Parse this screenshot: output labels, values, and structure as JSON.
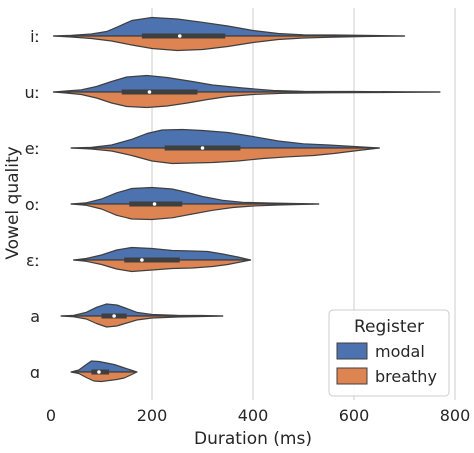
{
  "chart_data": {
    "type": "violin",
    "orientation": "horizontal",
    "split": true,
    "xlabel": "Duration (ms)",
    "ylabel": "Vowel quality",
    "xlim": [
      0,
      800
    ],
    "xticks": [
      0,
      200,
      400,
      600,
      800
    ],
    "grid": "vertical",
    "categories": [
      "iː",
      "uː",
      "eː",
      "oː",
      "ɛː",
      "a",
      "ɑ"
    ],
    "series": [
      {
        "name": "modal",
        "color": "#4c72b0"
      },
      {
        "name": "breathy",
        "color": "#dd8452"
      }
    ],
    "violins": [
      {
        "category": "iː",
        "range": [
          5,
          700
        ],
        "median": 255,
        "q1": 180,
        "q3": 345,
        "modal": [
          [
            5,
            0
          ],
          [
            40,
            0.03
          ],
          [
            80,
            0.08
          ],
          [
            110,
            0.18
          ],
          [
            130,
            0.35
          ],
          [
            160,
            0.62
          ],
          [
            200,
            0.74
          ],
          [
            250,
            0.68
          ],
          [
            300,
            0.55
          ],
          [
            350,
            0.4
          ],
          [
            400,
            0.22
          ],
          [
            450,
            0.1
          ],
          [
            500,
            0.05
          ],
          [
            560,
            0.04
          ],
          [
            620,
            0.03
          ],
          [
            700,
            0
          ]
        ],
        "breathy": [
          [
            5,
            0
          ],
          [
            40,
            0.04
          ],
          [
            80,
            0.1
          ],
          [
            120,
            0.2
          ],
          [
            160,
            0.36
          ],
          [
            200,
            0.5
          ],
          [
            250,
            0.58
          ],
          [
            300,
            0.54
          ],
          [
            350,
            0.42
          ],
          [
            400,
            0.26
          ],
          [
            450,
            0.14
          ],
          [
            500,
            0.08
          ],
          [
            550,
            0.05
          ],
          [
            620,
            0.02
          ],
          [
            700,
            0
          ]
        ]
      },
      {
        "category": "uː",
        "range": [
          5,
          770
        ],
        "median": 195,
        "q1": 140,
        "q3": 290,
        "modal": [
          [
            5,
            0
          ],
          [
            30,
            0.04
          ],
          [
            60,
            0.09
          ],
          [
            90,
            0.22
          ],
          [
            120,
            0.42
          ],
          [
            150,
            0.6
          ],
          [
            190,
            0.66
          ],
          [
            230,
            0.58
          ],
          [
            280,
            0.42
          ],
          [
            320,
            0.28
          ],
          [
            380,
            0.16
          ],
          [
            440,
            0.06
          ],
          [
            500,
            0.03
          ],
          [
            600,
            0.02
          ],
          [
            700,
            0.01
          ],
          [
            770,
            0
          ]
        ],
        "breathy": [
          [
            5,
            0
          ],
          [
            30,
            0.04
          ],
          [
            60,
            0.1
          ],
          [
            90,
            0.24
          ],
          [
            120,
            0.44
          ],
          [
            150,
            0.58
          ],
          [
            190,
            0.62
          ],
          [
            230,
            0.56
          ],
          [
            270,
            0.44
          ],
          [
            310,
            0.3
          ],
          [
            350,
            0.18
          ],
          [
            400,
            0.1
          ],
          [
            460,
            0.05
          ],
          [
            550,
            0.03
          ],
          [
            650,
            0.02
          ],
          [
            770,
            0
          ]
        ]
      },
      {
        "category": "eː",
        "range": [
          40,
          650
        ],
        "median": 300,
        "q1": 225,
        "q3": 375,
        "modal": [
          [
            40,
            0
          ],
          [
            80,
            0.03
          ],
          [
            120,
            0.12
          ],
          [
            160,
            0.35
          ],
          [
            190,
            0.58
          ],
          [
            220,
            0.72
          ],
          [
            260,
            0.74
          ],
          [
            300,
            0.7
          ],
          [
            350,
            0.62
          ],
          [
            400,
            0.46
          ],
          [
            450,
            0.28
          ],
          [
            500,
            0.17
          ],
          [
            550,
            0.12
          ],
          [
            600,
            0.06
          ],
          [
            650,
            0
          ]
        ],
        "breathy": [
          [
            40,
            0
          ],
          [
            80,
            0.04
          ],
          [
            120,
            0.12
          ],
          [
            160,
            0.3
          ],
          [
            200,
            0.52
          ],
          [
            240,
            0.62
          ],
          [
            280,
            0.6
          ],
          [
            320,
            0.58
          ],
          [
            370,
            0.52
          ],
          [
            420,
            0.42
          ],
          [
            470,
            0.35
          ],
          [
            520,
            0.3
          ],
          [
            560,
            0.22
          ],
          [
            600,
            0.12
          ],
          [
            650,
            0
          ]
        ]
      },
      {
        "category": "oː",
        "range": [
          40,
          530
        ],
        "median": 205,
        "q1": 155,
        "q3": 260,
        "modal": [
          [
            40,
            0
          ],
          [
            70,
            0.05
          ],
          [
            100,
            0.2
          ],
          [
            130,
            0.45
          ],
          [
            160,
            0.62
          ],
          [
            200,
            0.66
          ],
          [
            240,
            0.6
          ],
          [
            270,
            0.46
          ],
          [
            300,
            0.3
          ],
          [
            340,
            0.15
          ],
          [
            380,
            0.07
          ],
          [
            430,
            0.04
          ],
          [
            480,
            0.02
          ],
          [
            530,
            0
          ]
        ],
        "breathy": [
          [
            40,
            0
          ],
          [
            70,
            0.05
          ],
          [
            100,
            0.2
          ],
          [
            130,
            0.45
          ],
          [
            160,
            0.6
          ],
          [
            200,
            0.62
          ],
          [
            240,
            0.55
          ],
          [
            280,
            0.4
          ],
          [
            320,
            0.25
          ],
          [
            360,
            0.14
          ],
          [
            400,
            0.08
          ],
          [
            450,
            0.04
          ],
          [
            490,
            0.02
          ],
          [
            530,
            0
          ]
        ]
      },
      {
        "category": "ɛː",
        "range": [
          45,
          395
        ],
        "median": 180,
        "q1": 145,
        "q3": 255,
        "modal": [
          [
            45,
            0
          ],
          [
            70,
            0.06
          ],
          [
            100,
            0.2
          ],
          [
            130,
            0.4
          ],
          [
            160,
            0.5
          ],
          [
            200,
            0.46
          ],
          [
            240,
            0.38
          ],
          [
            280,
            0.36
          ],
          [
            310,
            0.34
          ],
          [
            340,
            0.24
          ],
          [
            370,
            0.12
          ],
          [
            395,
            0
          ]
        ],
        "breathy": [
          [
            45,
            0
          ],
          [
            70,
            0.05
          ],
          [
            100,
            0.18
          ],
          [
            130,
            0.36
          ],
          [
            160,
            0.46
          ],
          [
            200,
            0.4
          ],
          [
            240,
            0.34
          ],
          [
            280,
            0.32
          ],
          [
            320,
            0.26
          ],
          [
            350,
            0.18
          ],
          [
            375,
            0.08
          ],
          [
            395,
            0
          ]
        ]
      },
      {
        "category": "a",
        "range": [
          20,
          340
        ],
        "median": 125,
        "q1": 100,
        "q3": 150,
        "modal": [
          [
            20,
            0
          ],
          [
            45,
            0.03
          ],
          [
            70,
            0.15
          ],
          [
            90,
            0.35
          ],
          [
            110,
            0.48
          ],
          [
            130,
            0.44
          ],
          [
            150,
            0.3
          ],
          [
            170,
            0.15
          ],
          [
            200,
            0.06
          ],
          [
            250,
            0.03
          ],
          [
            300,
            0.02
          ],
          [
            340,
            0
          ]
        ],
        "breathy": [
          [
            20,
            0
          ],
          [
            45,
            0.03
          ],
          [
            70,
            0.12
          ],
          [
            90,
            0.3
          ],
          [
            110,
            0.44
          ],
          [
            130,
            0.4
          ],
          [
            150,
            0.28
          ],
          [
            170,
            0.16
          ],
          [
            200,
            0.08
          ],
          [
            250,
            0.04
          ],
          [
            300,
            0.02
          ],
          [
            340,
            0
          ]
        ]
      },
      {
        "category": "ɑ",
        "range": [
          40,
          170
        ],
        "median": 95,
        "q1": 80,
        "q3": 115,
        "modal": [
          [
            40,
            0
          ],
          [
            55,
            0.08
          ],
          [
            70,
            0.3
          ],
          [
            80,
            0.44
          ],
          [
            95,
            0.42
          ],
          [
            110,
            0.36
          ],
          [
            125,
            0.3
          ],
          [
            140,
            0.2
          ],
          [
            155,
            0.1
          ],
          [
            170,
            0
          ]
        ],
        "breathy": [
          [
            40,
            0
          ],
          [
            55,
            0.06
          ],
          [
            70,
            0.22
          ],
          [
            85,
            0.36
          ],
          [
            100,
            0.38
          ],
          [
            115,
            0.34
          ],
          [
            130,
            0.3
          ],
          [
            145,
            0.24
          ],
          [
            158,
            0.12
          ],
          [
            170,
            0
          ]
        ]
      }
    ],
    "legend": {
      "title": "Register",
      "position": "bottom-right",
      "entries": [
        "modal",
        "breathy"
      ]
    }
  }
}
